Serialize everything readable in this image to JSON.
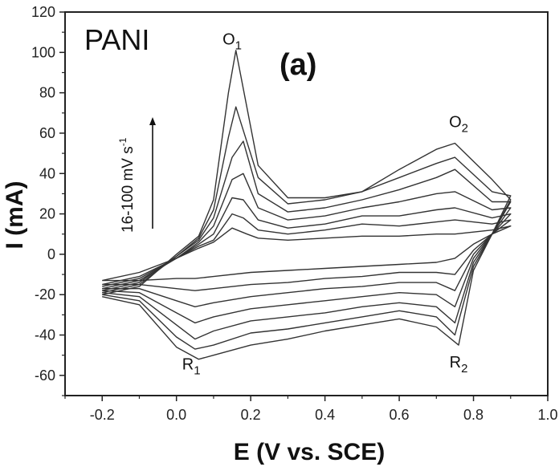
{
  "chart_data": {
    "type": "line",
    "title": "",
    "panel_label": "(a)",
    "material_label": "PANI",
    "xlabel": "E (V vs. SCE)",
    "ylabel": "I (mA)",
    "xlim": [
      -0.3,
      1.0
    ],
    "ylim": [
      -70,
      120
    ],
    "x_ticks": [
      -0.2,
      0.0,
      0.2,
      0.4,
      0.6,
      0.8,
      1.0
    ],
    "x_tick_labels": [
      "-0.2",
      "0.0",
      "0.2",
      "0.4",
      "0.6",
      "0.8",
      "1.0"
    ],
    "y_ticks": [
      -60,
      -40,
      -20,
      0,
      20,
      40,
      60,
      80,
      100,
      120
    ],
    "y_tick_labels": [
      "-60",
      "-40",
      "-20",
      "0",
      "20",
      "40",
      "60",
      "80",
      "100",
      "120"
    ],
    "grid": false,
    "scan_rate_annotation": "16-100 mV s",
    "scan_rate_superscript": "-1",
    "peak_labels": [
      {
        "main": "O",
        "sub": "1",
        "x": 0.15,
        "y": 104
      },
      {
        "main": "O",
        "sub": "2",
        "x": 0.76,
        "y": 63
      },
      {
        "main": "R",
        "sub": "1",
        "x": 0.04,
        "y": -57
      },
      {
        "main": "R",
        "sub": "2",
        "x": 0.76,
        "y": -56
      }
    ],
    "series": [
      {
        "anodic": [
          [
            -0.2,
            -13
          ],
          [
            -0.1,
            -9
          ],
          [
            0.0,
            -2
          ],
          [
            0.06,
            3
          ],
          [
            0.1,
            6
          ],
          [
            0.15,
            13
          ],
          [
            0.19,
            10
          ],
          [
            0.22,
            8
          ],
          [
            0.3,
            7
          ],
          [
            0.4,
            8
          ],
          [
            0.5,
            9
          ],
          [
            0.6,
            9
          ],
          [
            0.7,
            10
          ],
          [
            0.75,
            10
          ],
          [
            0.85,
            12
          ],
          [
            0.9,
            14
          ]
        ],
        "cathodic": [
          [
            0.9,
            14
          ],
          [
            0.85,
            10
          ],
          [
            0.8,
            5
          ],
          [
            0.75,
            -2
          ],
          [
            0.7,
            -4
          ],
          [
            0.6,
            -5
          ],
          [
            0.5,
            -6
          ],
          [
            0.4,
            -7
          ],
          [
            0.3,
            -8
          ],
          [
            0.2,
            -9
          ],
          [
            0.1,
            -11
          ],
          [
            0.05,
            -12
          ],
          [
            0.0,
            -12
          ],
          [
            -0.1,
            -13
          ],
          [
            -0.2,
            -13
          ]
        ]
      },
      {
        "anodic": [
          [
            -0.2,
            -15
          ],
          [
            -0.1,
            -11
          ],
          [
            0.0,
            -2
          ],
          [
            0.06,
            4
          ],
          [
            0.1,
            7
          ],
          [
            0.15,
            20
          ],
          [
            0.18,
            18
          ],
          [
            0.22,
            12
          ],
          [
            0.3,
            10
          ],
          [
            0.4,
            12
          ],
          [
            0.5,
            15
          ],
          [
            0.6,
            14
          ],
          [
            0.7,
            16
          ],
          [
            0.75,
            17
          ],
          [
            0.85,
            15
          ],
          [
            0.9,
            17
          ]
        ],
        "cathodic": [
          [
            0.9,
            17
          ],
          [
            0.85,
            10
          ],
          [
            0.8,
            2
          ],
          [
            0.75,
            -10
          ],
          [
            0.7,
            -9
          ],
          [
            0.6,
            -9
          ],
          [
            0.5,
            -11
          ],
          [
            0.4,
            -12
          ],
          [
            0.3,
            -14
          ],
          [
            0.2,
            -15
          ],
          [
            0.1,
            -17
          ],
          [
            0.05,
            -18
          ],
          [
            0.0,
            -17
          ],
          [
            -0.1,
            -15
          ],
          [
            -0.2,
            -15
          ]
        ]
      },
      {
        "anodic": [
          [
            -0.2,
            -16
          ],
          [
            -0.1,
            -12
          ],
          [
            0.0,
            -2
          ],
          [
            0.06,
            5
          ],
          [
            0.1,
            10
          ],
          [
            0.15,
            28
          ],
          [
            0.18,
            27
          ],
          [
            0.22,
            17
          ],
          [
            0.3,
            13
          ],
          [
            0.4,
            15
          ],
          [
            0.5,
            19
          ],
          [
            0.6,
            19
          ],
          [
            0.7,
            22
          ],
          [
            0.75,
            23
          ],
          [
            0.85,
            18
          ],
          [
            0.9,
            20
          ]
        ],
        "cathodic": [
          [
            0.9,
            20
          ],
          [
            0.85,
            10
          ],
          [
            0.8,
            0
          ],
          [
            0.75,
            -18
          ],
          [
            0.7,
            -14
          ],
          [
            0.6,
            -14
          ],
          [
            0.5,
            -16
          ],
          [
            0.4,
            -17
          ],
          [
            0.3,
            -19
          ],
          [
            0.2,
            -21
          ],
          [
            0.1,
            -24
          ],
          [
            0.05,
            -26
          ],
          [
            0.0,
            -23
          ],
          [
            -0.1,
            -17
          ],
          [
            -0.2,
            -17
          ]
        ]
      },
      {
        "anodic": [
          [
            -0.2,
            -17
          ],
          [
            -0.1,
            -13
          ],
          [
            0.0,
            -2
          ],
          [
            0.06,
            6
          ],
          [
            0.1,
            14
          ],
          [
            0.15,
            37
          ],
          [
            0.18,
            40
          ],
          [
            0.22,
            23
          ],
          [
            0.3,
            17
          ],
          [
            0.4,
            19
          ],
          [
            0.5,
            23
          ],
          [
            0.6,
            26
          ],
          [
            0.7,
            30
          ],
          [
            0.75,
            31
          ],
          [
            0.85,
            22
          ],
          [
            0.9,
            23
          ]
        ],
        "cathodic": [
          [
            0.9,
            23
          ],
          [
            0.85,
            10
          ],
          [
            0.8,
            -2
          ],
          [
            0.75,
            -26
          ],
          [
            0.7,
            -20
          ],
          [
            0.6,
            -19
          ],
          [
            0.5,
            -21
          ],
          [
            0.4,
            -23
          ],
          [
            0.3,
            -25
          ],
          [
            0.2,
            -27
          ],
          [
            0.1,
            -31
          ],
          [
            0.05,
            -34
          ],
          [
            0.0,
            -29
          ],
          [
            -0.1,
            -19
          ],
          [
            -0.2,
            -18
          ]
        ]
      },
      {
        "anodic": [
          [
            -0.2,
            -18
          ],
          [
            -0.1,
            -14
          ],
          [
            0.0,
            -1
          ],
          [
            0.06,
            7
          ],
          [
            0.1,
            18
          ],
          [
            0.15,
            48
          ],
          [
            0.18,
            56
          ],
          [
            0.22,
            30
          ],
          [
            0.3,
            21
          ],
          [
            0.4,
            23
          ],
          [
            0.5,
            27
          ],
          [
            0.6,
            32
          ],
          [
            0.7,
            38
          ],
          [
            0.75,
            42
          ],
          [
            0.85,
            26
          ],
          [
            0.9,
            26
          ]
        ],
        "cathodic": [
          [
            0.9,
            26
          ],
          [
            0.85,
            10
          ],
          [
            0.8,
            -4
          ],
          [
            0.75,
            -34
          ],
          [
            0.7,
            -26
          ],
          [
            0.6,
            -24
          ],
          [
            0.5,
            -26
          ],
          [
            0.4,
            -29
          ],
          [
            0.3,
            -31
          ],
          [
            0.2,
            -33
          ],
          [
            0.1,
            -38
          ],
          [
            0.05,
            -42
          ],
          [
            0.0,
            -35
          ],
          [
            -0.1,
            -21
          ],
          [
            -0.2,
            -19
          ]
        ]
      },
      {
        "anodic": [
          [
            -0.2,
            -19
          ],
          [
            -0.1,
            -15
          ],
          [
            0.0,
            -1
          ],
          [
            0.06,
            8
          ],
          [
            0.1,
            22
          ],
          [
            0.14,
            58
          ],
          [
            0.16,
            73
          ],
          [
            0.22,
            38
          ],
          [
            0.3,
            25
          ],
          [
            0.4,
            27
          ],
          [
            0.5,
            31
          ],
          [
            0.6,
            38
          ],
          [
            0.7,
            45
          ],
          [
            0.75,
            48
          ],
          [
            0.85,
            31
          ],
          [
            0.9,
            29
          ]
        ],
        "cathodic": [
          [
            0.9,
            29
          ],
          [
            0.85,
            10
          ],
          [
            0.8,
            -6
          ],
          [
            0.75,
            -40
          ],
          [
            0.7,
            -31
          ],
          [
            0.6,
            -28
          ],
          [
            0.5,
            -31
          ],
          [
            0.4,
            -34
          ],
          [
            0.3,
            -37
          ],
          [
            0.2,
            -39
          ],
          [
            0.1,
            -45
          ],
          [
            0.05,
            -47
          ],
          [
            0.0,
            -41
          ],
          [
            -0.1,
            -23
          ],
          [
            -0.2,
            -20
          ]
        ]
      },
      {
        "anodic": [
          [
            -0.2,
            -20
          ],
          [
            -0.1,
            -16
          ],
          [
            0.0,
            0
          ],
          [
            0.06,
            9
          ],
          [
            0.1,
            27
          ],
          [
            0.14,
            80
          ],
          [
            0.16,
            101
          ],
          [
            0.22,
            44
          ],
          [
            0.3,
            28
          ],
          [
            0.4,
            28
          ],
          [
            0.5,
            31
          ],
          [
            0.6,
            42
          ],
          [
            0.7,
            52
          ],
          [
            0.75,
            55
          ],
          [
            0.85,
            37
          ],
          [
            0.9,
            27
          ]
        ],
        "cathodic": [
          [
            0.9,
            27
          ],
          [
            0.85,
            10
          ],
          [
            0.8,
            -8
          ],
          [
            0.76,
            -45
          ],
          [
            0.7,
            -36
          ],
          [
            0.6,
            -32
          ],
          [
            0.5,
            -35
          ],
          [
            0.4,
            -38
          ],
          [
            0.3,
            -42
          ],
          [
            0.2,
            -45
          ],
          [
            0.1,
            -50
          ],
          [
            0.06,
            -52
          ],
          [
            0.0,
            -46
          ],
          [
            -0.1,
            -25
          ],
          [
            -0.2,
            -21
          ]
        ]
      }
    ]
  }
}
